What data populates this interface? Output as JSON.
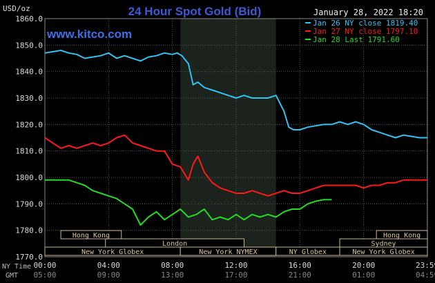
{
  "chart_data": {
    "type": "line",
    "title": "24 Hour Spot Gold (Bid)",
    "watermark": "www.kitco.com",
    "date_label": "January 28, 2022 18:20",
    "ylabel": "USD/oz",
    "ylim": [
      1770,
      1860
    ],
    "y_ticks": [
      "1860.0",
      "1850.0",
      "1840.0",
      "1830.0",
      "1820.0",
      "1810.0",
      "1800.0",
      "1790.0",
      "1780.0",
      "1770.0"
    ],
    "x_axis_ny_label": "NY Time",
    "x_axis_gmt_label": "GMT",
    "x_ticks_ny": [
      "00:00",
      "04:00",
      "08:00",
      "12:00",
      "16:00",
      "20:00",
      "23:59"
    ],
    "x_ticks_gmt": [
      "05:00",
      "09:00",
      "13:00",
      "17:00",
      "21:00",
      "01:00",
      "04:59"
    ],
    "x_hours": [
      0,
      4,
      8,
      12,
      16,
      20,
      23.983
    ],
    "highlight_hours": [
      8.5,
      14.5
    ],
    "sessions": [
      {
        "label": "Hong Kong",
        "start": 1,
        "end": 4.8,
        "row": 0
      },
      {
        "label": "Hong Kong",
        "start": 20.8,
        "end": 24,
        "row": 0
      },
      {
        "label": "London",
        "start": 3.8,
        "end": 12.5,
        "row": 1
      },
      {
        "label": "Sydney",
        "start": 18.5,
        "end": 24,
        "row": 1
      },
      {
        "label": "New York Globex",
        "start": 0,
        "end": 8.5,
        "row": 2
      },
      {
        "label": "New York NYMEX",
        "start": 8.5,
        "end": 14.5,
        "row": 2
      },
      {
        "label": "NY Globex",
        "start": 14.5,
        "end": 18.5,
        "row": 2
      },
      {
        "label": "New York Globex",
        "start": 18.5,
        "end": 24,
        "row": 2
      }
    ],
    "legend": [
      {
        "text": "Jan 26 NY close 1819.40",
        "color": "#2ec5f5"
      },
      {
        "text": "Jan 27 NY close 1797.10",
        "color": "#ff1a1a"
      },
      {
        "text": "Jan 28 Last 1791.60",
        "color": "#22dd22"
      }
    ],
    "series": [
      {
        "name": "Jan 26 NY close 1819.40",
        "color": "#2ec5f5",
        "x": [
          0,
          0.5,
          1,
          1.5,
          2,
          2.5,
          3,
          3.5,
          4,
          4.5,
          5,
          5.5,
          6,
          6.5,
          7,
          7.5,
          8,
          8.3,
          8.6,
          9,
          9.3,
          9.6,
          10,
          10.5,
          11,
          11.5,
          12,
          12.5,
          13,
          13.5,
          14,
          14.5,
          15,
          15.3,
          15.6,
          16,
          16.5,
          17,
          17.5,
          18,
          18.5,
          19,
          19.5,
          20,
          20.5,
          21,
          21.5,
          22,
          22.5,
          23,
          23.5,
          24
        ],
        "values": [
          1847,
          1847.5,
          1848,
          1847,
          1846.5,
          1845,
          1845.5,
          1846,
          1847,
          1845,
          1846,
          1845,
          1844,
          1845.5,
          1846,
          1847,
          1846.5,
          1847,
          1846,
          1843,
          1835,
          1836,
          1834,
          1833,
          1832,
          1831,
          1830,
          1831,
          1830,
          1830,
          1830,
          1831,
          1825,
          1819,
          1818,
          1818,
          1819,
          1819.5,
          1820,
          1820,
          1821,
          1820,
          1821,
          1820,
          1818,
          1817,
          1816,
          1815,
          1816,
          1815.5,
          1815,
          1815
        ]
      },
      {
        "name": "Jan 27 NY close 1797.10",
        "color": "#ff1a1a",
        "x": [
          0,
          0.5,
          1,
          1.5,
          2,
          2.5,
          3,
          3.5,
          4,
          4.5,
          5,
          5.5,
          6,
          6.5,
          7,
          7.5,
          8,
          8.5,
          9,
          9.3,
          9.6,
          10,
          10.5,
          11,
          11.5,
          12,
          12.5,
          13,
          13.5,
          14,
          14.5,
          15,
          15.5,
          16,
          16.5,
          17,
          17.5,
          18,
          18.5,
          19,
          19.5,
          20,
          20.5,
          21,
          21.5,
          22,
          22.5,
          23,
          23.5,
          24
        ],
        "values": [
          1815,
          1813,
          1811,
          1812,
          1811,
          1812,
          1813,
          1812,
          1813,
          1815,
          1816,
          1813,
          1812,
          1811,
          1810,
          1810,
          1805,
          1804,
          1799,
          1805,
          1808,
          1802,
          1798,
          1796,
          1795,
          1794,
          1794,
          1795,
          1794,
          1793,
          1794,
          1795,
          1794,
          1794,
          1795,
          1796,
          1797,
          1797,
          1797,
          1797,
          1797,
          1796,
          1797,
          1797,
          1798,
          1798,
          1799,
          1799,
          1799,
          1799
        ]
      },
      {
        "name": "Jan 28 Last 1791.60",
        "color": "#22dd22",
        "x": [
          0,
          0.5,
          1,
          1.5,
          2,
          2.5,
          3,
          3.5,
          4,
          4.5,
          5,
          5.5,
          6,
          6.5,
          7,
          7.5,
          8,
          8.5,
          9,
          9.5,
          10,
          10.5,
          11,
          11.5,
          12,
          12.5,
          13,
          13.5,
          14,
          14.5,
          15,
          15.5,
          16,
          16.5,
          17,
          17.5,
          18
        ],
        "values": [
          1799,
          1799,
          1799,
          1799,
          1798,
          1797,
          1795,
          1794,
          1793,
          1792,
          1790,
          1788,
          1782,
          1785,
          1787,
          1784,
          1786,
          1788,
          1785,
          1786,
          1788,
          1784,
          1785,
          1784,
          1786,
          1784,
          1786,
          1785,
          1786,
          1785,
          1787,
          1788,
          1788,
          1790,
          1791,
          1791.6,
          1791.6
        ]
      }
    ]
  }
}
